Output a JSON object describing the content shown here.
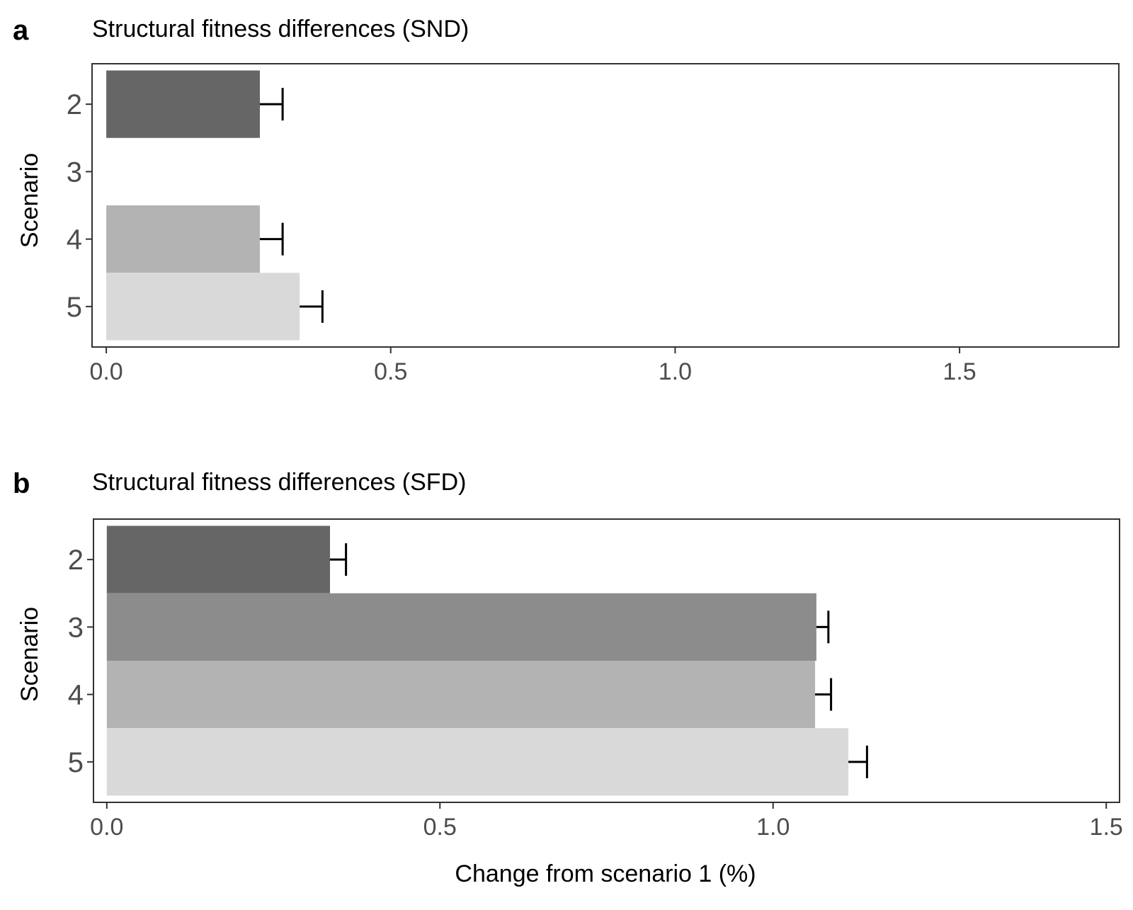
{
  "chart_data": [
    {
      "type": "bar",
      "orientation": "horizontal",
      "panel_label": "a",
      "title": "Structural fitness differences (SND)",
      "ylabel": "Scenario",
      "xlabel": "",
      "categories": [
        "2",
        "3",
        "4",
        "5"
      ],
      "values": [
        0.27,
        null,
        0.27,
        0.34
      ],
      "error_upper": [
        0.31,
        null,
        0.31,
        0.38
      ],
      "bar_colors": [
        "#666666",
        "#8c8c8c",
        "#b3b3b3",
        "#d9d9d9"
      ],
      "xlim": [
        -0.025,
        1.78
      ],
      "xticks": [
        0.0,
        0.5,
        1.0,
        1.5
      ],
      "xtick_labels": [
        "0.0",
        "0.5",
        "1.0",
        "1.5"
      ],
      "grid": false
    },
    {
      "type": "bar",
      "orientation": "horizontal",
      "panel_label": "b",
      "title": "Structural fitness differences (SFD)",
      "ylabel": "Scenario",
      "xlabel": "Change from scenario 1 (%)",
      "categories": [
        "2",
        "3",
        "4",
        "5"
      ],
      "values": [
        0.335,
        1.065,
        1.063,
        1.113
      ],
      "error_upper": [
        0.359,
        1.083,
        1.087,
        1.141
      ],
      "bar_colors": [
        "#666666",
        "#8c8c8c",
        "#b3b3b3",
        "#d9d9d9"
      ],
      "xlim": [
        -0.02,
        1.52
      ],
      "xticks": [
        0.0,
        0.5,
        1.0,
        1.5
      ],
      "xtick_labels": [
        "0.0",
        "0.5",
        "1.0",
        "1.5"
      ],
      "grid": false
    }
  ]
}
